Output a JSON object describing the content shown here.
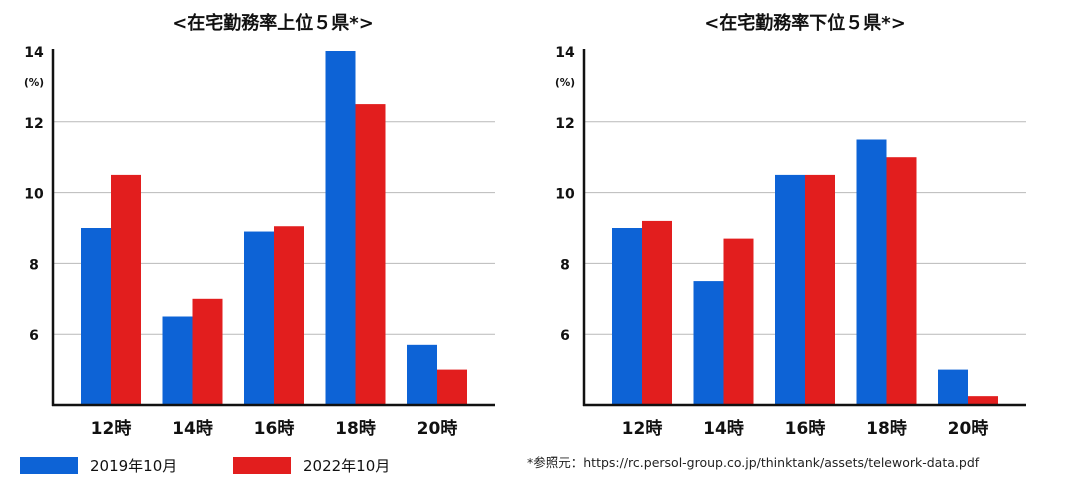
{
  "chart_data": [
    {
      "type": "bar",
      "title": "<在宅勤務率上位５県*>",
      "unit_label": "(%)",
      "categories": [
        "12時",
        "14時",
        "16時",
        "18時",
        "20時"
      ],
      "series": [
        {
          "name": "2019年10月",
          "values": [
            9.0,
            6.5,
            8.9,
            14.0,
            5.7
          ]
        },
        {
          "name": "2022年10月",
          "values": [
            10.5,
            7.0,
            9.05,
            12.5,
            5.0
          ]
        }
      ],
      "ylim": [
        4.0,
        14.0
      ],
      "yticks": [
        6,
        8,
        10,
        12,
        14
      ],
      "grid": true
    },
    {
      "type": "bar",
      "title": "<在宅勤務率下位５県*>",
      "unit_label": "(%)",
      "categories": [
        "12時",
        "14時",
        "16時",
        "18時",
        "20時"
      ],
      "series": [
        {
          "name": "2019年10月",
          "values": [
            9.0,
            7.5,
            10.5,
            11.5,
            5.0
          ]
        },
        {
          "name": "2022年10月",
          "values": [
            9.2,
            8.7,
            10.5,
            11.0,
            4.25
          ]
        }
      ],
      "ylim": [
        4.0,
        14.0
      ],
      "yticks": [
        6,
        8,
        10,
        12,
        14
      ],
      "grid": true
    }
  ],
  "colors": {
    "series_2019": "#0d63d6",
    "series_2022": "#e21e1e",
    "grid": "#b9b9b9",
    "axis": "#111111"
  },
  "legend": {
    "items": [
      {
        "label": "2019年10月",
        "color": "#0d63d6"
      },
      {
        "label": "2022年10月",
        "color": "#e21e1e"
      }
    ]
  },
  "source_note": "*参照元：https://rc.persol-group.co.jp/thinktank/assets/telework-data.pdf"
}
